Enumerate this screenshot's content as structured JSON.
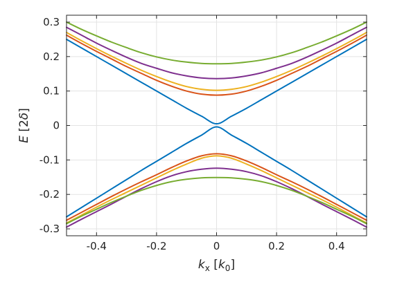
{
  "chart_data": {
    "type": "line",
    "title": "",
    "xlabel": "k_x [k_0]",
    "xlabel_parts": {
      "italic": "k",
      "sub": "x",
      "rest_open": " [",
      "rest_italic": "k",
      "rest_sub": "0",
      "rest_close": "]"
    },
    "ylabel": "E [2δ]",
    "ylabel_parts": {
      "italic": "E",
      "rest_open": " [2",
      "rest_italic": "δ",
      "rest_close": "]"
    },
    "xlim": [
      -0.5,
      0.5
    ],
    "ylim": [
      -0.32,
      0.32
    ],
    "xticks": [
      -0.4,
      -0.2,
      0,
      0.2,
      0.4
    ],
    "xtick_labels": [
      "-0.4",
      "-0.2",
      "0",
      "0.2",
      "0.4"
    ],
    "yticks": [
      -0.3,
      -0.2,
      -0.1,
      0,
      0.1,
      0.2,
      0.3
    ],
    "ytick_labels": [
      "-0.3",
      "-0.2",
      "-0.1",
      "0",
      "0.1",
      "0.2",
      "0.3"
    ],
    "grid": true,
    "legend": "none",
    "x": [
      -0.5,
      -0.45,
      -0.4,
      -0.35,
      -0.3,
      -0.25,
      -0.2,
      -0.15,
      -0.1,
      -0.05,
      0,
      0.05,
      0.1,
      0.15,
      0.2,
      0.25,
      0.3,
      0.35,
      0.4,
      0.45,
      0.5
    ],
    "series": [
      {
        "color": "#0072BD",
        "values": [
          0.25,
          0.225,
          0.2,
          0.175,
          0.15,
          0.125,
          0.1,
          0.075,
          0.05,
          0.027,
          0.005,
          0.027,
          0.05,
          0.075,
          0.1,
          0.125,
          0.15,
          0.175,
          0.2,
          0.225,
          0.25
        ]
      },
      {
        "color": "#0072BD",
        "values": [
          -0.265,
          -0.238,
          -0.211,
          -0.184,
          -0.157,
          -0.13,
          -0.104,
          -0.078,
          -0.052,
          -0.028,
          -0.004,
          -0.028,
          -0.052,
          -0.078,
          -0.104,
          -0.13,
          -0.157,
          -0.184,
          -0.211,
          -0.238,
          -0.265
        ]
      },
      {
        "color": "#D95319",
        "values": [
          0.262,
          0.238,
          0.215,
          0.193,
          0.171,
          0.151,
          0.131,
          0.114,
          0.1,
          0.091,
          0.088,
          0.091,
          0.1,
          0.114,
          0.131,
          0.151,
          0.171,
          0.193,
          0.215,
          0.238,
          0.262
        ]
      },
      {
        "color": "#D95319",
        "values": [
          -0.275,
          -0.252,
          -0.229,
          -0.206,
          -0.184,
          -0.163,
          -0.143,
          -0.122,
          -0.103,
          -0.088,
          -0.082,
          -0.088,
          -0.103,
          -0.122,
          -0.143,
          -0.163,
          -0.184,
          -0.206,
          -0.229,
          -0.252,
          -0.275
        ]
      },
      {
        "color": "#EDB120",
        "values": [
          0.27,
          0.246,
          0.223,
          0.201,
          0.18,
          0.16,
          0.142,
          0.126,
          0.113,
          0.105,
          0.102,
          0.105,
          0.113,
          0.126,
          0.142,
          0.16,
          0.18,
          0.201,
          0.223,
          0.246,
          0.27
        ]
      },
      {
        "color": "#EDB120",
        "values": [
          -0.283,
          -0.26,
          -0.237,
          -0.215,
          -0.194,
          -0.173,
          -0.152,
          -0.131,
          -0.112,
          -0.095,
          -0.088,
          -0.095,
          -0.112,
          -0.131,
          -0.152,
          -0.173,
          -0.194,
          -0.215,
          -0.237,
          -0.26,
          -0.283
        ]
      },
      {
        "color": "#7E2F8E",
        "values": [
          0.285,
          0.262,
          0.239,
          0.218,
          0.198,
          0.18,
          0.166,
          0.153,
          0.144,
          0.138,
          0.136,
          0.138,
          0.144,
          0.153,
          0.166,
          0.18,
          0.198,
          0.218,
          0.239,
          0.262,
          0.285
        ]
      },
      {
        "color": "#7E2F8E",
        "values": [
          -0.295,
          -0.272,
          -0.25,
          -0.228,
          -0.205,
          -0.183,
          -0.163,
          -0.146,
          -0.134,
          -0.127,
          -0.124,
          -0.127,
          -0.134,
          -0.146,
          -0.163,
          -0.183,
          -0.205,
          -0.228,
          -0.25,
          -0.272,
          -0.295
        ]
      },
      {
        "color": "#77AC30",
        "values": [
          0.3,
          0.279,
          0.26,
          0.242,
          0.226,
          0.211,
          0.199,
          0.19,
          0.184,
          0.18,
          0.179,
          0.18,
          0.184,
          0.19,
          0.199,
          0.211,
          0.226,
          0.242,
          0.26,
          0.279,
          0.3
        ]
      },
      {
        "color": "#77AC30",
        "values": [
          -0.285,
          -0.263,
          -0.243,
          -0.223,
          -0.205,
          -0.188,
          -0.174,
          -0.163,
          -0.156,
          -0.152,
          -0.151,
          -0.152,
          -0.156,
          -0.163,
          -0.174,
          -0.188,
          -0.205,
          -0.223,
          -0.243,
          -0.263,
          -0.285
        ]
      }
    ]
  }
}
